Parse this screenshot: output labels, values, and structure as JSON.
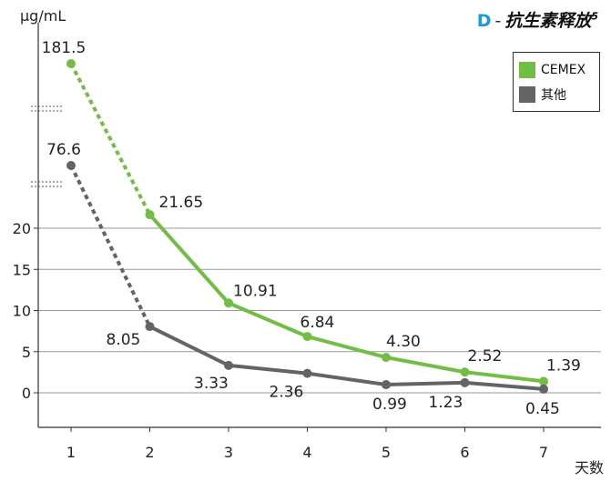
{
  "title": {
    "letter": "D",
    "dash": "-",
    "text": "抗生素释放",
    "sup": "5"
  },
  "colors": {
    "cemex": "#72be44",
    "other": "#636466",
    "grid": "#9a9a9a",
    "title_letter": "#1a9ad6"
  },
  "chart_data": {
    "type": "line",
    "title": "D - 抗生素释放5",
    "ylabel": "μg/mL",
    "xlabel": "天数",
    "x": [
      1,
      2,
      3,
      4,
      5,
      6,
      7
    ],
    "ylim": [
      -4,
      25
    ],
    "yticks": [
      0,
      5,
      10,
      15,
      20
    ],
    "grid": true,
    "legend": "top-right",
    "axis_break": "y-axis above 20 (broken scale)",
    "series": [
      {
        "name": "CEMEX",
        "color": "#72be44",
        "values": [
          181.5,
          21.65,
          10.91,
          6.84,
          4.3,
          2.52,
          1.39
        ],
        "labels": [
          "181.5",
          "21.65",
          "10.91",
          "6.84",
          "4.30",
          "2.52",
          "1.39"
        ],
        "dashed_segment": [
          1,
          2
        ]
      },
      {
        "name": "其他",
        "color": "#636466",
        "values": [
          76.6,
          8.05,
          3.33,
          2.36,
          0.99,
          1.23,
          0.45
        ],
        "labels": [
          "76.6",
          "8.05",
          "3.33",
          "2.36",
          "0.99",
          "1.23",
          "0.45"
        ],
        "dashed_segment": [
          1,
          2
        ]
      }
    ]
  }
}
